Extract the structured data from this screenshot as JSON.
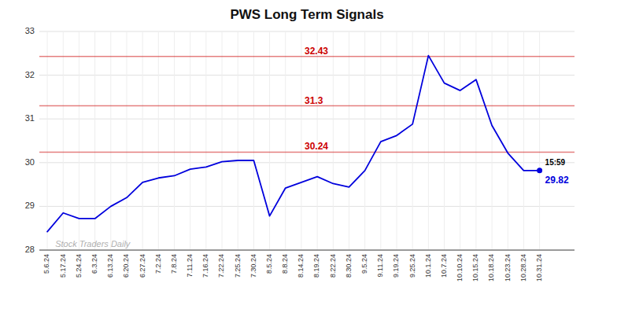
{
  "chart_data": {
    "type": "line",
    "title": "PWS Long Term Signals",
    "categories": [
      "5.6.24",
      "5.17.24",
      "5.24.24",
      "6.3.24",
      "6.13.24",
      "6.20.24",
      "6.27.24",
      "7.2.24",
      "7.8.24",
      "7.11.24",
      "7.16.24",
      "7.22.24",
      "7.25.24",
      "7.30.24",
      "8.5.24",
      "8.8.24",
      "8.14.24",
      "8.19.24",
      "8.22.24",
      "8.30.24",
      "9.5.24",
      "9.11.24",
      "9.19.24",
      "9.25.24",
      "10.1.24",
      "10.7.24",
      "10.10.24",
      "10.15.24",
      "10.18.24",
      "10.23.24",
      "10.28.24",
      "10.31.24"
    ],
    "values": [
      28.42,
      28.85,
      28.72,
      28.72,
      29.0,
      29.2,
      29.55,
      29.65,
      29.7,
      29.85,
      29.9,
      30.02,
      30.05,
      30.05,
      28.78,
      29.42,
      29.55,
      29.68,
      29.52,
      29.44,
      29.82,
      30.48,
      30.62,
      30.88,
      32.45,
      31.82,
      31.65,
      31.9,
      30.85,
      30.22,
      29.82,
      29.82
    ],
    "color": "#0000dd",
    "ylim": [
      28.0,
      33.0
    ],
    "yticks": [
      28,
      29,
      30,
      31,
      32,
      33
    ],
    "grid": true,
    "hlines": [
      {
        "y": 30.24,
        "label": "30.24",
        "color": "#cc0000"
      },
      {
        "y": 31.3,
        "label": "31.3",
        "color": "#cc0000"
      },
      {
        "y": 32.43,
        "label": "32.43",
        "color": "#cc0000"
      }
    ],
    "last_label": "15:59",
    "last_value_label": "29.82",
    "watermark": "Stock Traders Daily"
  }
}
